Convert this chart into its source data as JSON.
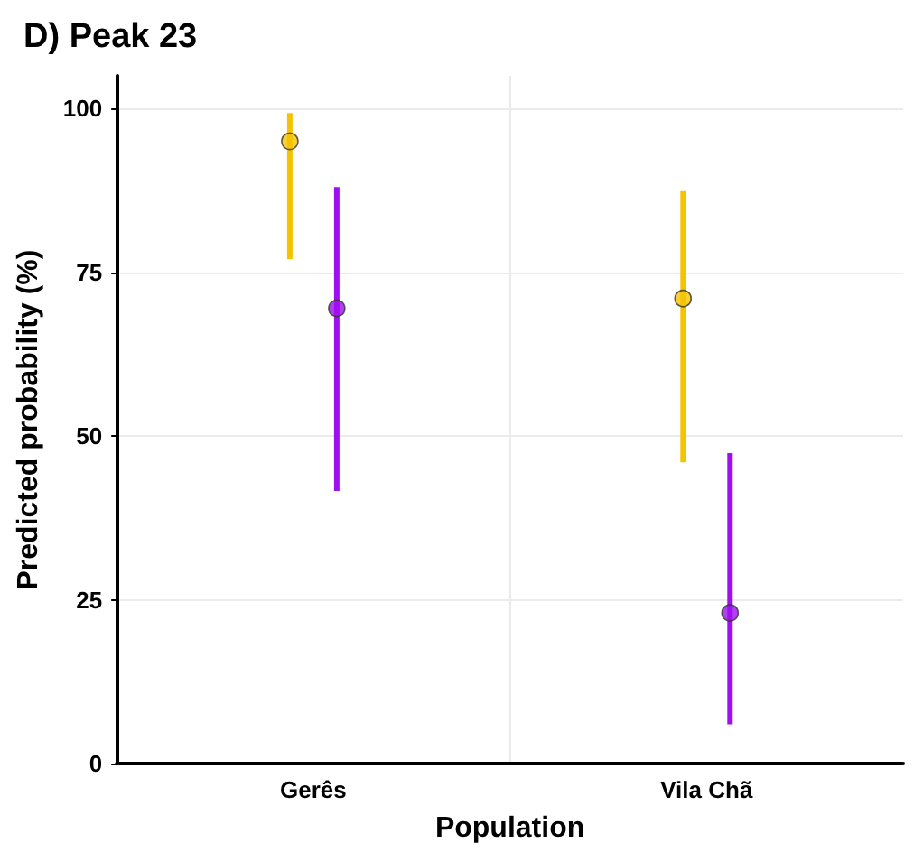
{
  "chart_data": {
    "type": "scatter",
    "title": "D) Peak 23",
    "xlabel": "Population",
    "ylabel": "Predicted probability (%)",
    "categories": [
      "Gerês",
      "Vila Chã"
    ],
    "series": [
      {
        "color": "#f5c400",
        "values": [
          95,
          71
        ],
        "errors": [
          [
            77,
            99.3
          ],
          [
            46,
            87.4
          ]
        ]
      },
      {
        "color": "#a00ff0",
        "values": [
          69.5,
          23
        ],
        "errors": [
          [
            41.6,
            88
          ],
          [
            6,
            47.4
          ]
        ]
      }
    ],
    "ylim": [
      0,
      105
    ],
    "yticks": [
      0,
      25,
      50,
      75,
      100
    ],
    "grid": true,
    "marker": "circle"
  }
}
